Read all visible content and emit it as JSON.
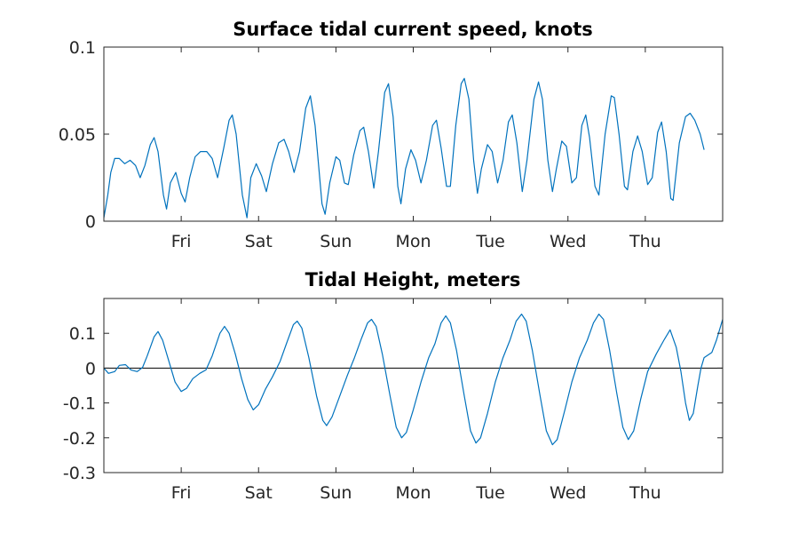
{
  "chart_data": [
    {
      "type": "line",
      "title": "Surface tidal current speed, knots",
      "xlabel": "",
      "ylabel": "",
      "x_tick_labels": [
        "Fri",
        "Sat",
        "Sun",
        "Mon",
        "Tue",
        "Wed",
        "Thu"
      ],
      "x_tick_values": [
        1,
        2,
        3,
        4,
        5,
        6,
        7
      ],
      "xlim": [
        0,
        8
      ],
      "y_ticks": [
        0,
        0.05,
        0.1
      ],
      "y_tick_labels": [
        "0",
        "0.05",
        "0.1"
      ],
      "ylim": [
        0,
        0.1
      ],
      "grid": false,
      "series": [
        {
          "color": "#0072bd",
          "points": [
            [
              0.0,
              0.002
            ],
            [
              0.05,
              0.015
            ],
            [
              0.09,
              0.028
            ],
            [
              0.14,
              0.036
            ],
            [
              0.2,
              0.036
            ],
            [
              0.27,
              0.033
            ],
            [
              0.34,
              0.035
            ],
            [
              0.41,
              0.032
            ],
            [
              0.47,
              0.025
            ],
            [
              0.53,
              0.032
            ],
            [
              0.6,
              0.044
            ],
            [
              0.65,
              0.048
            ],
            [
              0.7,
              0.04
            ],
            [
              0.77,
              0.015
            ],
            [
              0.81,
              0.007
            ],
            [
              0.86,
              0.022
            ],
            [
              0.93,
              0.028
            ],
            [
              1.0,
              0.016
            ],
            [
              1.05,
              0.011
            ],
            [
              1.11,
              0.025
            ],
            [
              1.18,
              0.037
            ],
            [
              1.25,
              0.04
            ],
            [
              1.33,
              0.04
            ],
            [
              1.4,
              0.036
            ],
            [
              1.47,
              0.025
            ],
            [
              1.55,
              0.042
            ],
            [
              1.62,
              0.058
            ],
            [
              1.66,
              0.061
            ],
            [
              1.71,
              0.05
            ],
            [
              1.79,
              0.015
            ],
            [
              1.85,
              0.002
            ],
            [
              1.9,
              0.025
            ],
            [
              1.97,
              0.033
            ],
            [
              2.04,
              0.026
            ],
            [
              2.1,
              0.017
            ],
            [
              2.18,
              0.033
            ],
            [
              2.26,
              0.045
            ],
            [
              2.33,
              0.047
            ],
            [
              2.39,
              0.04
            ],
            [
              2.46,
              0.028
            ],
            [
              2.53,
              0.04
            ],
            [
              2.61,
              0.065
            ],
            [
              2.67,
              0.072
            ],
            [
              2.73,
              0.055
            ],
            [
              2.82,
              0.01
            ],
            [
              2.86,
              0.004
            ],
            [
              2.92,
              0.022
            ],
            [
              3.0,
              0.037
            ],
            [
              3.05,
              0.035
            ],
            [
              3.11,
              0.022
            ],
            [
              3.16,
              0.021
            ],
            [
              3.23,
              0.038
            ],
            [
              3.31,
              0.052
            ],
            [
              3.36,
              0.054
            ],
            [
              3.42,
              0.04
            ],
            [
              3.49,
              0.019
            ],
            [
              3.55,
              0.04
            ],
            [
              3.63,
              0.074
            ],
            [
              3.68,
              0.079
            ],
            [
              3.74,
              0.06
            ],
            [
              3.8,
              0.02
            ],
            [
              3.84,
              0.01
            ],
            [
              3.9,
              0.03
            ],
            [
              3.97,
              0.041
            ],
            [
              4.03,
              0.035
            ],
            [
              4.1,
              0.022
            ],
            [
              4.17,
              0.035
            ],
            [
              4.25,
              0.055
            ],
            [
              4.3,
              0.058
            ],
            [
              4.36,
              0.042
            ],
            [
              4.43,
              0.02
            ],
            [
              4.48,
              0.02
            ],
            [
              4.55,
              0.055
            ],
            [
              4.62,
              0.079
            ],
            [
              4.66,
              0.082
            ],
            [
              4.72,
              0.07
            ],
            [
              4.78,
              0.035
            ],
            [
              4.83,
              0.016
            ],
            [
              4.88,
              0.03
            ],
            [
              4.96,
              0.044
            ],
            [
              5.02,
              0.04
            ],
            [
              5.09,
              0.022
            ],
            [
              5.16,
              0.035
            ],
            [
              5.23,
              0.057
            ],
            [
              5.28,
              0.061
            ],
            [
              5.34,
              0.045
            ],
            [
              5.41,
              0.017
            ],
            [
              5.47,
              0.035
            ],
            [
              5.56,
              0.07
            ],
            [
              5.62,
              0.08
            ],
            [
              5.67,
              0.07
            ],
            [
              5.74,
              0.035
            ],
            [
              5.8,
              0.017
            ],
            [
              5.85,
              0.03
            ],
            [
              5.92,
              0.046
            ],
            [
              5.98,
              0.043
            ],
            [
              6.05,
              0.022
            ],
            [
              6.11,
              0.025
            ],
            [
              6.18,
              0.055
            ],
            [
              6.23,
              0.061
            ],
            [
              6.28,
              0.048
            ],
            [
              6.35,
              0.02
            ],
            [
              6.4,
              0.015
            ],
            [
              6.48,
              0.05
            ],
            [
              6.56,
              0.072
            ],
            [
              6.6,
              0.071
            ],
            [
              6.66,
              0.05
            ],
            [
              6.73,
              0.02
            ],
            [
              6.77,
              0.018
            ],
            [
              6.84,
              0.04
            ],
            [
              6.9,
              0.049
            ],
            [
              6.96,
              0.04
            ],
            [
              7.03,
              0.021
            ],
            [
              7.09,
              0.025
            ],
            [
              7.16,
              0.051
            ],
            [
              7.21,
              0.057
            ],
            [
              7.27,
              0.04
            ],
            [
              7.33,
              0.013
            ],
            [
              7.36,
              0.012
            ],
            [
              7.44,
              0.045
            ],
            [
              7.52,
              0.06
            ],
            [
              7.58,
              0.062
            ],
            [
              7.64,
              0.058
            ],
            [
              7.71,
              0.05
            ],
            [
              7.76,
              0.041
            ]
          ]
        }
      ]
    },
    {
      "type": "line",
      "title": "Tidal Height, meters",
      "xlabel": "",
      "ylabel": "",
      "x_tick_labels": [
        "Fri",
        "Sat",
        "Sun",
        "Mon",
        "Tue",
        "Wed",
        "Thu"
      ],
      "x_tick_values": [
        1,
        2,
        3,
        4,
        5,
        6,
        7
      ],
      "xlim": [
        0,
        8
      ],
      "y_ticks": [
        -0.3,
        -0.2,
        -0.1,
        0,
        0.1
      ],
      "y_tick_labels": [
        "-0.3",
        "-0.2",
        "-0.1",
        "0",
        "0.1"
      ],
      "ylim": [
        -0.3,
        0.2
      ],
      "grid": false,
      "zero_line": true,
      "series": [
        {
          "color": "#0072bd",
          "points": [
            [
              0.0,
              0.0
            ],
            [
              0.06,
              -0.015
            ],
            [
              0.14,
              -0.01
            ],
            [
              0.2,
              0.008
            ],
            [
              0.28,
              0.01
            ],
            [
              0.35,
              -0.005
            ],
            [
              0.43,
              -0.01
            ],
            [
              0.5,
              0.002
            ],
            [
              0.56,
              0.035
            ],
            [
              0.65,
              0.09
            ],
            [
              0.7,
              0.105
            ],
            [
              0.76,
              0.08
            ],
            [
              0.84,
              0.02
            ],
            [
              0.92,
              -0.04
            ],
            [
              1.0,
              -0.067
            ],
            [
              1.07,
              -0.058
            ],
            [
              1.15,
              -0.03
            ],
            [
              1.24,
              -0.015
            ],
            [
              1.32,
              -0.005
            ],
            [
              1.4,
              0.035
            ],
            [
              1.5,
              0.1
            ],
            [
              1.56,
              0.12
            ],
            [
              1.62,
              0.1
            ],
            [
              1.7,
              0.04
            ],
            [
              1.78,
              -0.03
            ],
            [
              1.86,
              -0.09
            ],
            [
              1.93,
              -0.12
            ],
            [
              2.0,
              -0.105
            ],
            [
              2.09,
              -0.06
            ],
            [
              2.18,
              -0.025
            ],
            [
              2.28,
              0.02
            ],
            [
              2.36,
              0.07
            ],
            [
              2.45,
              0.125
            ],
            [
              2.5,
              0.135
            ],
            [
              2.56,
              0.115
            ],
            [
              2.65,
              0.03
            ],
            [
              2.75,
              -0.08
            ],
            [
              2.83,
              -0.15
            ],
            [
              2.88,
              -0.165
            ],
            [
              2.95,
              -0.14
            ],
            [
              3.05,
              -0.08
            ],
            [
              3.15,
              -0.02
            ],
            [
              3.24,
              0.03
            ],
            [
              3.33,
              0.085
            ],
            [
              3.41,
              0.13
            ],
            [
              3.46,
              0.14
            ],
            [
              3.52,
              0.12
            ],
            [
              3.6,
              0.04
            ],
            [
              3.7,
              -0.08
            ],
            [
              3.78,
              -0.17
            ],
            [
              3.85,
              -0.2
            ],
            [
              3.91,
              -0.185
            ],
            [
              4.0,
              -0.12
            ],
            [
              4.1,
              -0.04
            ],
            [
              4.2,
              0.03
            ],
            [
              4.28,
              0.07
            ],
            [
              4.36,
              0.13
            ],
            [
              4.42,
              0.15
            ],
            [
              4.48,
              0.13
            ],
            [
              4.56,
              0.05
            ],
            [
              4.66,
              -0.08
            ],
            [
              4.74,
              -0.18
            ],
            [
              4.81,
              -0.215
            ],
            [
              4.87,
              -0.2
            ],
            [
              4.96,
              -0.13
            ],
            [
              5.06,
              -0.04
            ],
            [
              5.16,
              0.03
            ],
            [
              5.25,
              0.08
            ],
            [
              5.33,
              0.135
            ],
            [
              5.4,
              0.155
            ],
            [
              5.46,
              0.135
            ],
            [
              5.54,
              0.05
            ],
            [
              5.64,
              -0.08
            ],
            [
              5.72,
              -0.18
            ],
            [
              5.8,
              -0.22
            ],
            [
              5.86,
              -0.205
            ],
            [
              5.96,
              -0.12
            ],
            [
              6.05,
              -0.04
            ],
            [
              6.15,
              0.03
            ],
            [
              6.25,
              0.08
            ],
            [
              6.33,
              0.13
            ],
            [
              6.4,
              0.155
            ],
            [
              6.46,
              0.14
            ],
            [
              6.54,
              0.05
            ],
            [
              6.63,
              -0.07
            ],
            [
              6.71,
              -0.17
            ],
            [
              6.78,
              -0.205
            ],
            [
              6.85,
              -0.18
            ],
            [
              6.94,
              -0.09
            ],
            [
              7.03,
              -0.01
            ],
            [
              7.14,
              0.04
            ],
            [
              7.24,
              0.08
            ],
            [
              7.32,
              0.11
            ],
            [
              7.4,
              0.06
            ],
            [
              7.46,
              -0.01
            ],
            [
              7.52,
              -0.1
            ],
            [
              7.57,
              -0.15
            ],
            [
              7.62,
              -0.13
            ],
            [
              7.68,
              -0.05
            ],
            [
              7.72,
              0.0
            ],
            [
              7.76,
              0.03
            ],
            [
              7.86,
              0.045
            ],
            [
              7.92,
              0.08
            ],
            [
              8.0,
              0.14
            ]
          ]
        }
      ]
    }
  ]
}
